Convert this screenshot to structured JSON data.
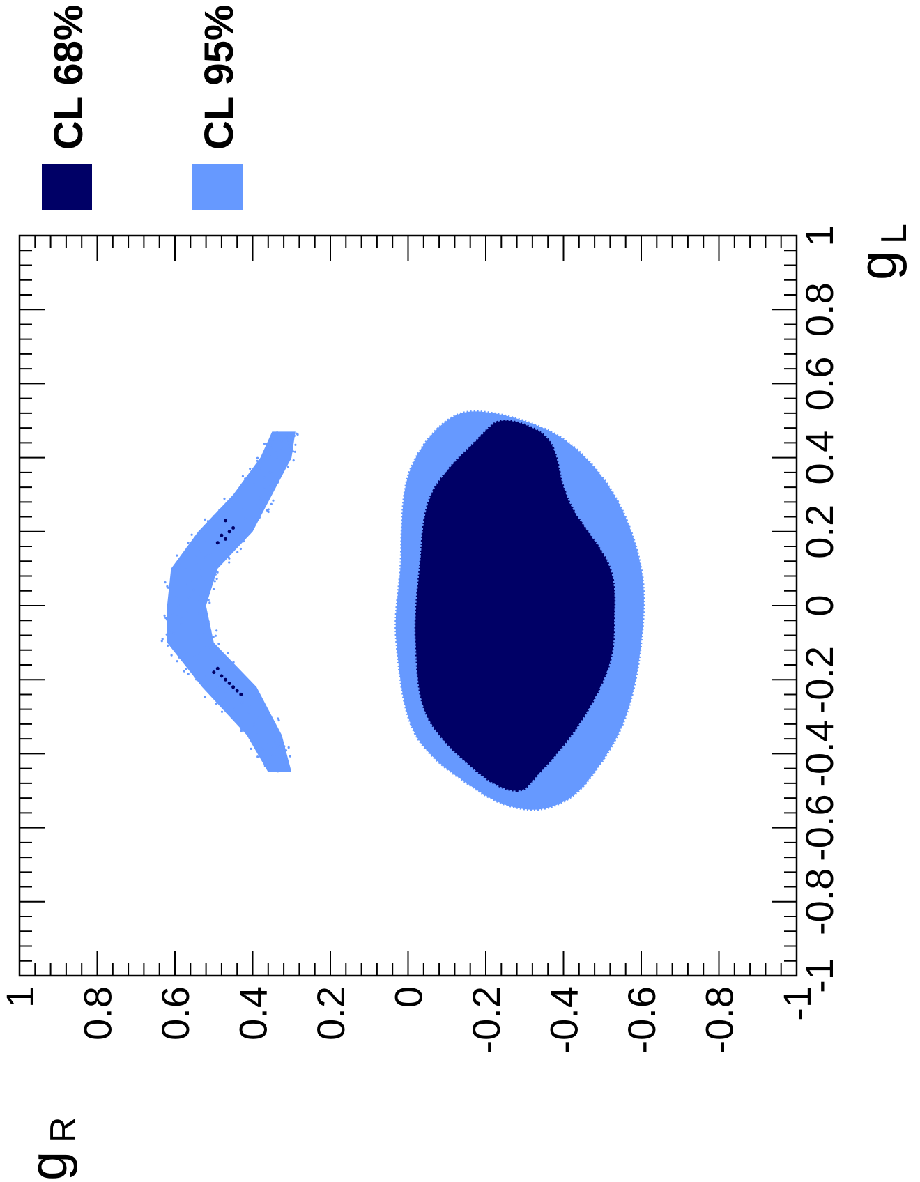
{
  "chart_data": {
    "type": "scatter",
    "orientation": "rotated-90-clockwise",
    "xlabel": "g",
    "xlabel_sub": "L",
    "ylabel": "g",
    "ylabel_sub": "R",
    "xlim": [
      -1,
      1
    ],
    "ylim": [
      -1,
      1
    ],
    "x_ticks": [
      -1,
      -0.8,
      -0.6,
      -0.4,
      -0.2,
      0,
      0.2,
      0.4,
      0.6,
      0.8,
      1
    ],
    "x_tick_labels": [
      "-1",
      "-0.8",
      "-0.6",
      "-0.4",
      "-0.2",
      "0",
      "0.2",
      "0.4",
      "0.6",
      "0.8",
      "1"
    ],
    "y_ticks": [
      -1,
      -0.8,
      -0.6,
      -0.4,
      -0.2,
      0,
      0.2,
      0.4,
      0.6,
      0.8,
      1
    ],
    "y_tick_labels": [
      "-1",
      "-0.8",
      "-0.6",
      "-0.4",
      "-0.2",
      "0",
      "0.2",
      "0.4",
      "0.6",
      "0.8",
      "1"
    ],
    "grid": false,
    "legend_position": "top-right",
    "series": [
      {
        "name": "CL 68%",
        "color": "#000066",
        "regions": [
          {
            "shape": "blob",
            "outline": [
              [
                -0.5,
                -0.28
              ],
              [
                -0.45,
                -0.18
              ],
              [
                -0.3,
                -0.05
              ],
              [
                -0.1,
                -0.02
              ],
              [
                0.1,
                -0.03
              ],
              [
                0.3,
                -0.06
              ],
              [
                0.45,
                -0.18
              ],
              [
                0.5,
                -0.25
              ],
              [
                0.45,
                -0.36
              ],
              [
                0.32,
                -0.4
              ],
              [
                0.25,
                -0.43
              ],
              [
                0.1,
                -0.52
              ],
              [
                -0.05,
                -0.53
              ],
              [
                -0.15,
                -0.52
              ],
              [
                -0.25,
                -0.48
              ],
              [
                -0.35,
                -0.42
              ],
              [
                -0.45,
                -0.34
              ]
            ]
          },
          {
            "shape": "points",
            "points": [
              [
                0.23,
                0.47
              ],
              [
                0.2,
                0.46
              ],
              [
                0.17,
                0.49
              ],
              [
                0.19,
                0.48
              ],
              [
                0.21,
                0.45
              ],
              [
                0.18,
                0.47
              ],
              [
                -0.17,
                0.49
              ],
              [
                -0.2,
                0.47
              ],
              [
                -0.22,
                0.45
              ],
              [
                -0.24,
                0.43
              ],
              [
                -0.19,
                0.48
              ],
              [
                -0.21,
                0.46
              ],
              [
                -0.23,
                0.44
              ],
              [
                -0.18,
                0.5
              ]
            ]
          }
        ]
      },
      {
        "name": "CL 95%",
        "color": "#6699ff",
        "regions": [
          {
            "shape": "blob",
            "outline": [
              [
                -0.55,
                -0.3
              ],
              [
                -0.5,
                -0.18
              ],
              [
                -0.35,
                -0.02
              ],
              [
                -0.1,
                0.03
              ],
              [
                0.1,
                0.02
              ],
              [
                0.35,
                0.0
              ],
              [
                0.5,
                -0.1
              ],
              [
                0.52,
                -0.22
              ],
              [
                0.45,
                -0.4
              ],
              [
                0.3,
                -0.53
              ],
              [
                0.1,
                -0.6
              ],
              [
                -0.1,
                -0.6
              ],
              [
                -0.3,
                -0.56
              ],
              [
                -0.45,
                -0.48
              ],
              [
                -0.53,
                -0.4
              ]
            ]
          },
          {
            "shape": "band",
            "centerline": [
              [
                -0.45,
                0.33
              ],
              [
                -0.35,
                0.37
              ],
              [
                -0.22,
                0.46
              ],
              [
                -0.1,
                0.56
              ],
              [
                0.0,
                0.57
              ],
              [
                0.1,
                0.55
              ],
              [
                0.2,
                0.47
              ],
              [
                0.3,
                0.4
              ],
              [
                0.4,
                0.34
              ],
              [
                0.47,
                0.32
              ]
            ],
            "half_width": [
              0.03,
              0.045,
              0.07,
              0.06,
              0.05,
              0.06,
              0.07,
              0.05,
              0.04,
              0.03
            ]
          }
        ]
      }
    ]
  }
}
